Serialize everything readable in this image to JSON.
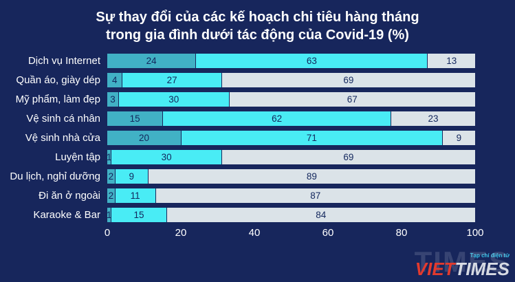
{
  "title_lines": [
    "Sự thay đổi của các kế hoạch chi tiêu hàng tháng",
    "trong gia đình dưới tác động của Covid-19 (%)"
  ],
  "chart_data": {
    "type": "bar",
    "orientation": "horizontal-stacked",
    "title": "Sự thay đổi của các kế hoạch chi tiêu hàng tháng trong gia đình dưới tác động của Covid-19 (%)",
    "categories": [
      "Dịch vụ Internet",
      "Quần áo, giày dép",
      "Mỹ phẩm, làm đẹp",
      "Vệ sinh cá nhân",
      "Vệ sinh nhà cửa",
      "Luyện tập",
      "Du lịch, nghỉ dưỡng",
      "Đi ăn ở ngoài",
      "Karaoke & Bar"
    ],
    "series": [
      {
        "name": "series-1",
        "color": "#41b1c5",
        "values": [
          24,
          4,
          3,
          15,
          20,
          1,
          2,
          2,
          1
        ]
      },
      {
        "name": "series-2",
        "color": "#49ecf5",
        "values": [
          63,
          27,
          30,
          62,
          71,
          30,
          9,
          11,
          15
        ]
      },
      {
        "name": "series-3",
        "color": "#dbe3e8",
        "values": [
          13,
          69,
          67,
          23,
          9,
          69,
          89,
          87,
          84
        ]
      }
    ],
    "xlim": [
      0,
      100
    ],
    "x_ticks": [
      0,
      20,
      40,
      60,
      80,
      100
    ],
    "legend": "none",
    "grid": "off",
    "background": "#17265c",
    "value_label_color": "#12265c"
  },
  "watermark": {
    "small_text": "Tạp chí điện tử",
    "viet": "VIET",
    "times": "TIMES",
    "big_text": "TIMES"
  }
}
